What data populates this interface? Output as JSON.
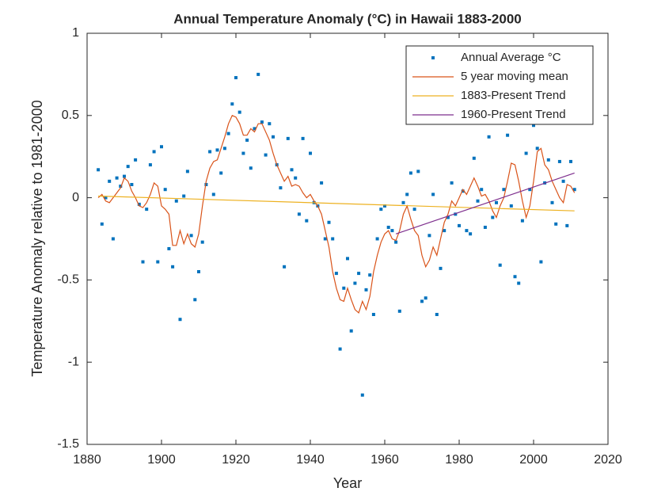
{
  "chart_data": {
    "type": "line",
    "title": "Annual Temperature Anomaly (°C) in Hawaii 1883-2000",
    "xlabel": "Year",
    "ylabel": "Temperature Anomaly relative to 1981-2000",
    "xlim": [
      1880,
      2020
    ],
    "xticks": [
      1880,
      1900,
      1920,
      1940,
      1960,
      1980,
      2000,
      2020
    ],
    "ylim": [
      -1.5,
      1
    ],
    "yticks": [
      -1.5,
      -1,
      -0.5,
      0,
      0.5,
      1
    ],
    "grid": false,
    "legend": "northeast",
    "x": [
      1883,
      1884,
      1885,
      1886,
      1887,
      1888,
      1889,
      1890,
      1891,
      1892,
      1893,
      1894,
      1895,
      1896,
      1897,
      1898,
      1899,
      1900,
      1901,
      1902,
      1903,
      1904,
      1905,
      1906,
      1907,
      1908,
      1909,
      1910,
      1911,
      1912,
      1913,
      1914,
      1915,
      1916,
      1917,
      1918,
      1919,
      1920,
      1921,
      1922,
      1923,
      1924,
      1925,
      1926,
      1927,
      1928,
      1929,
      1930,
      1931,
      1932,
      1933,
      1934,
      1935,
      1936,
      1937,
      1938,
      1939,
      1940,
      1941,
      1942,
      1943,
      1944,
      1945,
      1946,
      1947,
      1948,
      1949,
      1950,
      1951,
      1952,
      1953,
      1954,
      1955,
      1956,
      1957,
      1958,
      1959,
      1960,
      1961,
      1962,
      1963,
      1964,
      1965,
      1966,
      1967,
      1968,
      1969,
      1970,
      1971,
      1972,
      1973,
      1974,
      1975,
      1976,
      1977,
      1978,
      1979,
      1980,
      1981,
      1982,
      1983,
      1984,
      1985,
      1986,
      1987,
      1988,
      1989,
      1990,
      1991,
      1992,
      1993,
      1994,
      1995,
      1996,
      1997,
      1998,
      1999,
      2000,
      2001,
      2002,
      2003,
      2004,
      2005,
      2006,
      2007,
      2008,
      2009,
      2010,
      2011
    ],
    "series": [
      {
        "name": "Annual Average °C",
        "color": "#0072bd",
        "marker": "square",
        "values": [
          0.17,
          -0.16,
          0,
          0.1,
          -0.25,
          0.12,
          0.07,
          0.13,
          0.19,
          0.08,
          0.23,
          -0.04,
          -0.39,
          -0.07,
          0.2,
          0.28,
          -0.39,
          0.31,
          0.05,
          -0.31,
          -0.42,
          -0.02,
          -0.74,
          0.01,
          0.16,
          -0.23,
          -0.62,
          -0.45,
          -0.27,
          0.08,
          0.28,
          0.02,
          0.29,
          0.15,
          0.3,
          0.39,
          0.57,
          0.73,
          0.52,
          0.27,
          0.35,
          0.18,
          0.42,
          0.75,
          0.46,
          0.26,
          0.45,
          0.37,
          0.2,
          0.06,
          -0.42,
          0.36,
          0.17,
          0.12,
          -0.1,
          0.36,
          -0.14,
          0.27,
          -0.03,
          -0.05,
          0.09,
          -0.25,
          -0.15,
          -0.25,
          -0.46,
          -0.92,
          -0.55,
          -0.37,
          -0.81,
          -0.52,
          -0.46,
          -1.2,
          -0.56,
          -0.47,
          -0.71,
          -0.25,
          -0.07,
          -0.05,
          -0.18,
          -0.2,
          -0.27,
          -0.69,
          -0.03,
          0.02,
          0.15,
          -0.07,
          0.16,
          -0.63,
          -0.61,
          -0.23,
          0.02,
          -0.71,
          -0.43,
          -0.2,
          -0.12,
          0.09,
          -0.1,
          -0.17,
          0.04,
          -0.2,
          -0.22,
          0.24,
          -0.02,
          0.05,
          -0.18,
          0.37,
          -0.12,
          -0.03,
          -0.41,
          0.05,
          0.38,
          -0.05,
          -0.48,
          -0.52,
          -0.14,
          0.27,
          0.05,
          0.44,
          0.3,
          -0.39,
          0.09,
          0.23,
          -0.03,
          -0.16,
          0.22,
          0.1,
          -0.17,
          0.22,
          0.05
        ]
      },
      {
        "name": "5 year moving mean",
        "color": "#d95319",
        "values": [
          0,
          0.02,
          -0.02,
          -0.03,
          0,
          0.03,
          0.06,
          0.12,
          0.1,
          0.04,
          0,
          -0.05,
          -0.06,
          -0.03,
          0.02,
          0.09,
          0.07,
          -0.05,
          -0.07,
          -0.1,
          -0.29,
          -0.29,
          -0.2,
          -0.28,
          -0.22,
          -0.28,
          -0.3,
          -0.22,
          -0.05,
          0.1,
          0.18,
          0.22,
          0.23,
          0.3,
          0.37,
          0.45,
          0.5,
          0.49,
          0.45,
          0.38,
          0.38,
          0.42,
          0.4,
          0.45,
          0.45,
          0.4,
          0.35,
          0.27,
          0.2,
          0.15,
          0.1,
          0.13,
          0.07,
          0.08,
          0.07,
          0.03,
          0,
          0.02,
          -0.02,
          -0.05,
          -0.1,
          -0.2,
          -0.3,
          -0.45,
          -0.55,
          -0.62,
          -0.63,
          -0.55,
          -0.62,
          -0.68,
          -0.7,
          -0.63,
          -0.68,
          -0.6,
          -0.45,
          -0.35,
          -0.27,
          -0.22,
          -0.2,
          -0.25,
          -0.26,
          -0.2,
          -0.1,
          -0.05,
          -0.13,
          -0.2,
          -0.23,
          -0.35,
          -0.42,
          -0.38,
          -0.3,
          -0.35,
          -0.25,
          -0.15,
          -0.1,
          -0.02,
          -0.05,
          0,
          0.05,
          0.02,
          0.07,
          0.12,
          0.07,
          0.01,
          0.02,
          -0.02,
          -0.08,
          -0.12,
          -0.05,
          0,
          0.1,
          0.21,
          0.2,
          0.1,
          -0.02,
          -0.12,
          -0.05,
          0.1,
          0.28,
          0.3,
          0.2,
          0.17,
          0.1,
          0.05,
          0,
          -0.03,
          0.08,
          0.07,
          0.03
        ]
      },
      {
        "name": "1883-Present Trend",
        "color": "#edb120",
        "x": [
          1883,
          2011
        ],
        "values": [
          0.01,
          -0.08
        ]
      },
      {
        "name": "1960-Present Trend",
        "color": "#7e2f8e",
        "x": [
          1963,
          2011
        ],
        "values": [
          -0.22,
          0.15
        ]
      }
    ]
  }
}
